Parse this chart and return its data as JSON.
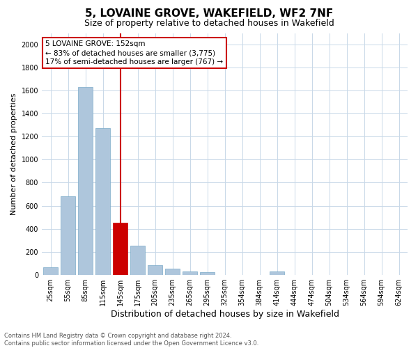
{
  "title": "5, LOVAINE GROVE, WAKEFIELD, WF2 7NF",
  "subtitle": "Size of property relative to detached houses in Wakefield",
  "xlabel": "Distribution of detached houses by size in Wakefield",
  "ylabel": "Number of detached properties",
  "categories": [
    "25sqm",
    "55sqm",
    "85sqm",
    "115sqm",
    "145sqm",
    "175sqm",
    "205sqm",
    "235sqm",
    "265sqm",
    "295sqm",
    "325sqm",
    "354sqm",
    "384sqm",
    "414sqm",
    "444sqm",
    "474sqm",
    "504sqm",
    "534sqm",
    "564sqm",
    "594sqm",
    "624sqm"
  ],
  "values": [
    65,
    680,
    1630,
    1275,
    450,
    250,
    85,
    50,
    30,
    25,
    0,
    0,
    0,
    30,
    0,
    0,
    0,
    0,
    0,
    0,
    0
  ],
  "highlight_index": 4,
  "highlight_color": "#cc0000",
  "bar_color": "#aec6dc",
  "bar_edge_color": "#7baac8",
  "ylim": [
    0,
    2100
  ],
  "yticks": [
    0,
    200,
    400,
    600,
    800,
    1000,
    1200,
    1400,
    1600,
    1800,
    2000
  ],
  "annotation_text": "5 LOVAINE GROVE: 152sqm\n← 83% of detached houses are smaller (3,775)\n17% of semi-detached houses are larger (767) →",
  "annotation_box_color": "#ffffff",
  "annotation_box_edge": "#cc0000",
  "vline_index": 4,
  "footer_line1": "Contains HM Land Registry data © Crown copyright and database right 2024.",
  "footer_line2": "Contains public sector information licensed under the Open Government Licence v3.0.",
  "bg_color": "#ffffff",
  "grid_color": "#c8d8e8",
  "title_fontsize": 11,
  "subtitle_fontsize": 9,
  "ylabel_fontsize": 8,
  "xlabel_fontsize": 9,
  "tick_fontsize": 7,
  "annot_fontsize": 7.5,
  "footer_fontsize": 6
}
